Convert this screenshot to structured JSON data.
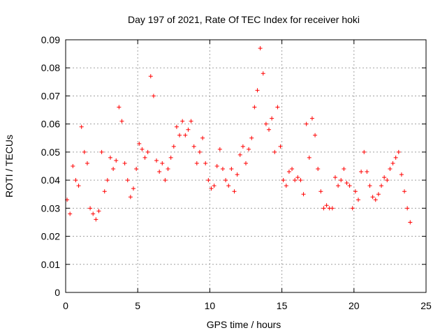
{
  "chart_data": {
    "type": "scatter",
    "title": "Day 197 of 2021, Rate Of TEC Index for receiver hoki",
    "xlabel": "GPS time / hours",
    "ylabel": "ROTI / TECUs",
    "xlim": [
      0,
      25
    ],
    "ylim": [
      0,
      0.09
    ],
    "x_ticks": [
      "0",
      "5",
      "10",
      "15",
      "20",
      "25"
    ],
    "y_ticks": [
      "0",
      "0.01",
      "0.02",
      "0.03",
      "0.04",
      "0.05",
      "0.06",
      "0.07",
      "0.08",
      "0.09"
    ],
    "grid": true,
    "marker": "+",
    "color": "#ff0000",
    "series": [
      {
        "x": [
          0.1,
          0.3,
          0.5,
          0.7,
          0.9,
          1.1,
          1.3,
          1.5,
          1.7,
          1.9,
          2.1,
          2.3,
          2.5,
          2.7,
          2.9,
          3.1,
          3.3,
          3.5,
          3.7,
          3.9,
          4.1,
          4.3,
          4.5,
          4.7,
          4.9,
          5.1,
          5.3,
          5.5,
          5.7,
          5.9,
          6.1,
          6.3,
          6.5,
          6.7,
          6.9,
          7.1,
          7.3,
          7.5,
          7.7,
          7.9,
          8.1,
          8.3,
          8.5,
          8.7,
          8.9,
          9.1,
          9.3,
          9.5,
          9.7,
          9.9,
          10.1,
          10.3,
          10.5,
          10.7,
          10.9,
          11.1,
          11.3,
          11.5,
          11.7,
          11.9,
          12.1,
          12.3,
          12.5,
          12.7,
          12.9,
          13.1,
          13.3,
          13.5,
          13.7,
          13.9,
          14.1,
          14.3,
          14.5,
          14.7,
          14.9,
          15.1,
          15.3,
          15.5,
          15.7,
          15.9,
          16.1,
          16.3,
          16.5,
          16.7,
          16.9,
          17.1,
          17.3,
          17.5,
          17.7,
          17.9,
          18.1,
          18.3,
          18.5,
          18.7,
          18.9,
          19.1,
          19.3,
          19.5,
          19.7,
          19.9,
          20.1,
          20.3,
          20.5,
          20.7,
          20.9,
          21.1,
          21.3,
          21.5,
          21.7,
          21.9,
          22.1,
          22.3,
          22.5,
          22.7,
          22.9,
          23.1,
          23.3,
          23.5,
          23.7,
          23.9
        ],
        "y": [
          0.033,
          0.028,
          0.045,
          0.04,
          0.038,
          0.059,
          0.05,
          0.046,
          0.03,
          0.028,
          0.026,
          0.029,
          0.05,
          0.036,
          0.04,
          0.048,
          0.044,
          0.047,
          0.066,
          0.061,
          0.046,
          0.04,
          0.034,
          0.037,
          0.044,
          0.053,
          0.051,
          0.048,
          0.05,
          0.077,
          0.07,
          0.047,
          0.043,
          0.046,
          0.04,
          0.044,
          0.048,
          0.052,
          0.059,
          0.056,
          0.061,
          0.056,
          0.058,
          0.061,
          0.052,
          0.046,
          0.05,
          0.055,
          0.046,
          0.04,
          0.037,
          0.038,
          0.045,
          0.051,
          0.044,
          0.04,
          0.038,
          0.044,
          0.036,
          0.042,
          0.049,
          0.052,
          0.046,
          0.051,
          0.055,
          0.066,
          0.072,
          0.087,
          0.078,
          0.06,
          0.058,
          0.062,
          0.05,
          0.066,
          0.052,
          0.04,
          0.038,
          0.043,
          0.044,
          0.04,
          0.041,
          0.04,
          0.035,
          0.06,
          0.048,
          0.062,
          0.056,
          0.044,
          0.036,
          0.03,
          0.031,
          0.03,
          0.03,
          0.041,
          0.038,
          0.04,
          0.044,
          0.039,
          0.038,
          0.03,
          0.036,
          0.033,
          0.043,
          0.05,
          0.043,
          0.038,
          0.034,
          0.033,
          0.035,
          0.038,
          0.041,
          0.04,
          0.044,
          0.046,
          0.048,
          0.05,
          0.042,
          0.036,
          0.03,
          0.025
        ]
      }
    ]
  }
}
